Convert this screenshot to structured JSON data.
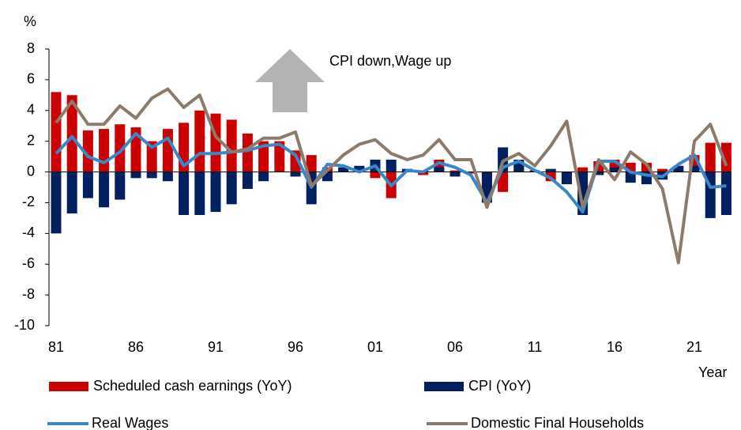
{
  "chart_data": {
    "type": "bar-line",
    "y_label": "%",
    "x_label": "Year",
    "annotation": "CPI down,Wage up",
    "categories": [
      "81",
      null,
      null,
      null,
      null,
      "86",
      null,
      null,
      null,
      null,
      "91",
      null,
      null,
      null,
      null,
      "96",
      null,
      null,
      null,
      null,
      "01",
      null,
      null,
      null,
      null,
      "06",
      null,
      null,
      null,
      null,
      "11",
      null,
      null,
      null,
      null,
      "16",
      null,
      null,
      null,
      null,
      "21",
      null,
      null
    ],
    "series": [
      {
        "name": "Scheduled cash earnings (YoY)",
        "kind": "bar",
        "color": "#cc0000",
        "values": [
          5.2,
          5.0,
          2.7,
          2.8,
          3.1,
          2.9,
          2.0,
          2.8,
          3.2,
          4.0,
          3.8,
          3.4,
          2.5,
          2.0,
          2.0,
          1.4,
          1.1,
          0.3,
          0.1,
          0.3,
          -0.4,
          -1.7,
          0.1,
          -0.2,
          0.8,
          0.1,
          -0.1,
          -1.2,
          -1.3,
          0.4,
          0.1,
          -0.6,
          -0.7,
          0.3,
          0.7,
          0.8,
          0.6,
          0.6,
          0.2,
          0.1,
          1.1,
          1.9,
          1.9
        ]
      },
      {
        "name": "CPI (YoY)",
        "kind": "bar",
        "color": "#002060",
        "values": [
          -4.0,
          -2.7,
          -1.7,
          -2.3,
          -1.8,
          -0.4,
          -0.4,
          -0.6,
          -2.8,
          -2.8,
          -2.6,
          -2.1,
          -1.1,
          -0.6,
          0.0,
          -0.3,
          -2.1,
          -0.6,
          0.3,
          0.4,
          0.8,
          0.8,
          0.2,
          0.1,
          0.3,
          -0.3,
          0.0,
          -2.0,
          1.6,
          0.8,
          0.1,
          0.2,
          -0.8,
          -2.8,
          -0.2,
          0.3,
          -0.7,
          -0.8,
          -0.5,
          0.4,
          0.4,
          -3.0,
          -2.8
        ]
      },
      {
        "name": "Real Wages",
        "kind": "line",
        "color": "#3a87c8",
        "values": [
          1.2,
          2.3,
          1.0,
          0.6,
          1.3,
          2.5,
          1.6,
          2.2,
          0.4,
          1.2,
          1.2,
          1.3,
          1.4,
          1.7,
          1.8,
          1.1,
          -1.0,
          0.5,
          0.4,
          0.0,
          0.4,
          -0.9,
          0.1,
          0.0,
          0.6,
          0.3,
          -0.2,
          -2.0,
          0.3,
          0.7,
          0.1,
          -0.4,
          -1.3,
          -2.6,
          0.7,
          0.7,
          0.0,
          -0.2,
          -0.3,
          0.5,
          1.1,
          -1.0,
          -0.9
        ]
      },
      {
        "name": "Domestic Final Households",
        "kind": "line",
        "color": "#8c7b6b",
        "values": [
          3.2,
          4.6,
          3.1,
          3.1,
          4.3,
          3.5,
          4.8,
          5.4,
          4.2,
          5.0,
          2.3,
          1.3,
          1.5,
          2.2,
          2.2,
          2.6,
          -0.9,
          0.1,
          1.1,
          1.8,
          2.1,
          1.2,
          0.8,
          1.1,
          2.1,
          0.8,
          0.8,
          -2.3,
          0.7,
          1.2,
          0.4,
          1.7,
          3.3,
          -2.3,
          0.8,
          -0.5,
          1.3,
          0.5,
          -1.1,
          -5.9,
          2.0,
          3.1,
          0.4
        ]
      }
    ],
    "ylim": [
      -10,
      8
    ],
    "yticks": [
      -10,
      -8,
      -6,
      -4,
      -2,
      0,
      2,
      4,
      6,
      8
    ],
    "legend": "bottom"
  }
}
